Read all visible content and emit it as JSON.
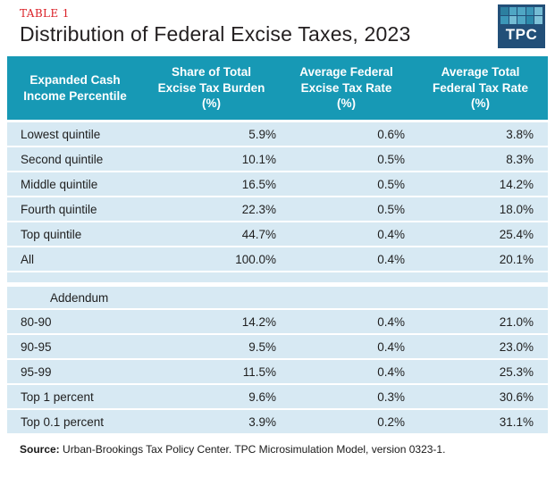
{
  "header": {
    "table_number": "TABLE 1",
    "title": "Distribution of Federal Excise Taxes, 2023",
    "logo_text": "TPC",
    "logo_bg": "#224f78",
    "logo_grid_colors": [
      "#2c7fa0",
      "#4fa6c4",
      "#4fa6c4",
      "#3c97b8",
      "#74bcd4",
      "#3c97b8",
      "#74bcd4",
      "#4fa6c4",
      "#2c8aab",
      "#7fc2d8"
    ]
  },
  "colors": {
    "header_teal": "#1799b5",
    "row_light_blue": "#d7e9f3",
    "accent_red": "#db2128",
    "body_text": "#1f1f1f"
  },
  "table": {
    "columns": [
      {
        "line1": "Expanded Cash",
        "line2": "Income Percentile",
        "line3": ""
      },
      {
        "line1": "Share of Total",
        "line2": "Excise Tax Burden",
        "line3": "(%)"
      },
      {
        "line1": "Average Federal",
        "line2": "Excise Tax Rate",
        "line3": "(%)"
      },
      {
        "line1": "Average Total",
        "line2": "Federal Tax Rate",
        "line3": "(%)"
      }
    ],
    "addendum_label": "Addendum",
    "rows": [
      {
        "label": "Lowest quintile",
        "share": "5.9%",
        "excise": "0.6%",
        "total": "3.8%"
      },
      {
        "label": "Second quintile",
        "share": "10.1%",
        "excise": "0.5%",
        "total": "8.3%"
      },
      {
        "label": "Middle quintile",
        "share": "16.5%",
        "excise": "0.5%",
        "total": "14.2%"
      },
      {
        "label": "Fourth quintile",
        "share": "22.3%",
        "excise": "0.5%",
        "total": "18.0%"
      },
      {
        "label": "Top quintile",
        "share": "44.7%",
        "excise": "0.4%",
        "total": "25.4%"
      },
      {
        "label": "All",
        "share": "100.0%",
        "excise": "0.4%",
        "total": "20.1%"
      },
      {
        "label": "80-90",
        "share": "14.2%",
        "excise": "0.4%",
        "total": "21.0%"
      },
      {
        "label": "90-95",
        "share": "9.5%",
        "excise": "0.4%",
        "total": "23.0%"
      },
      {
        "label": "95-99",
        "share": "11.5%",
        "excise": "0.4%",
        "total": "25.3%"
      },
      {
        "label": "Top 1 percent",
        "share": "9.6%",
        "excise": "0.3%",
        "total": "30.6%"
      },
      {
        "label": "Top 0.1 percent",
        "share": "3.9%",
        "excise": "0.2%",
        "total": "31.1%"
      }
    ]
  },
  "source": {
    "label": "Source:",
    "text": " Urban-Brookings Tax Policy Center. TPC Microsimulation Model, version 0323-1."
  },
  "chart_data": {
    "type": "table",
    "table_number": "TABLE 1",
    "title": "Distribution of Federal Excise Taxes, 2023",
    "columns": [
      "Expanded Cash Income Percentile",
      "Share of Total Excise Tax Burden (%)",
      "Average Federal Excise Tax Rate (%)",
      "Average Total Federal Tax Rate (%)"
    ],
    "units": "percent",
    "rows": [
      [
        "Lowest quintile",
        5.9,
        0.6,
        3.8
      ],
      [
        "Second quintile",
        10.1,
        0.5,
        8.3
      ],
      [
        "Middle quintile",
        16.5,
        0.5,
        14.2
      ],
      [
        "Fourth quintile",
        22.3,
        0.5,
        18.0
      ],
      [
        "Top quintile",
        44.7,
        0.4,
        25.4
      ],
      [
        "All",
        100.0,
        0.4,
        20.1
      ]
    ],
    "addendum_rows": [
      [
        "80-90",
        14.2,
        0.4,
        21.0
      ],
      [
        "90-95",
        9.5,
        0.4,
        23.0
      ],
      [
        "95-99",
        11.5,
        0.4,
        25.3
      ],
      [
        "Top 1 percent",
        9.6,
        0.3,
        30.6
      ],
      [
        "Top 0.1 percent",
        3.9,
        0.2,
        31.1
      ]
    ],
    "source": "Urban-Brookings Tax Policy Center. TPC Microsimulation Model, version 0323-1."
  }
}
